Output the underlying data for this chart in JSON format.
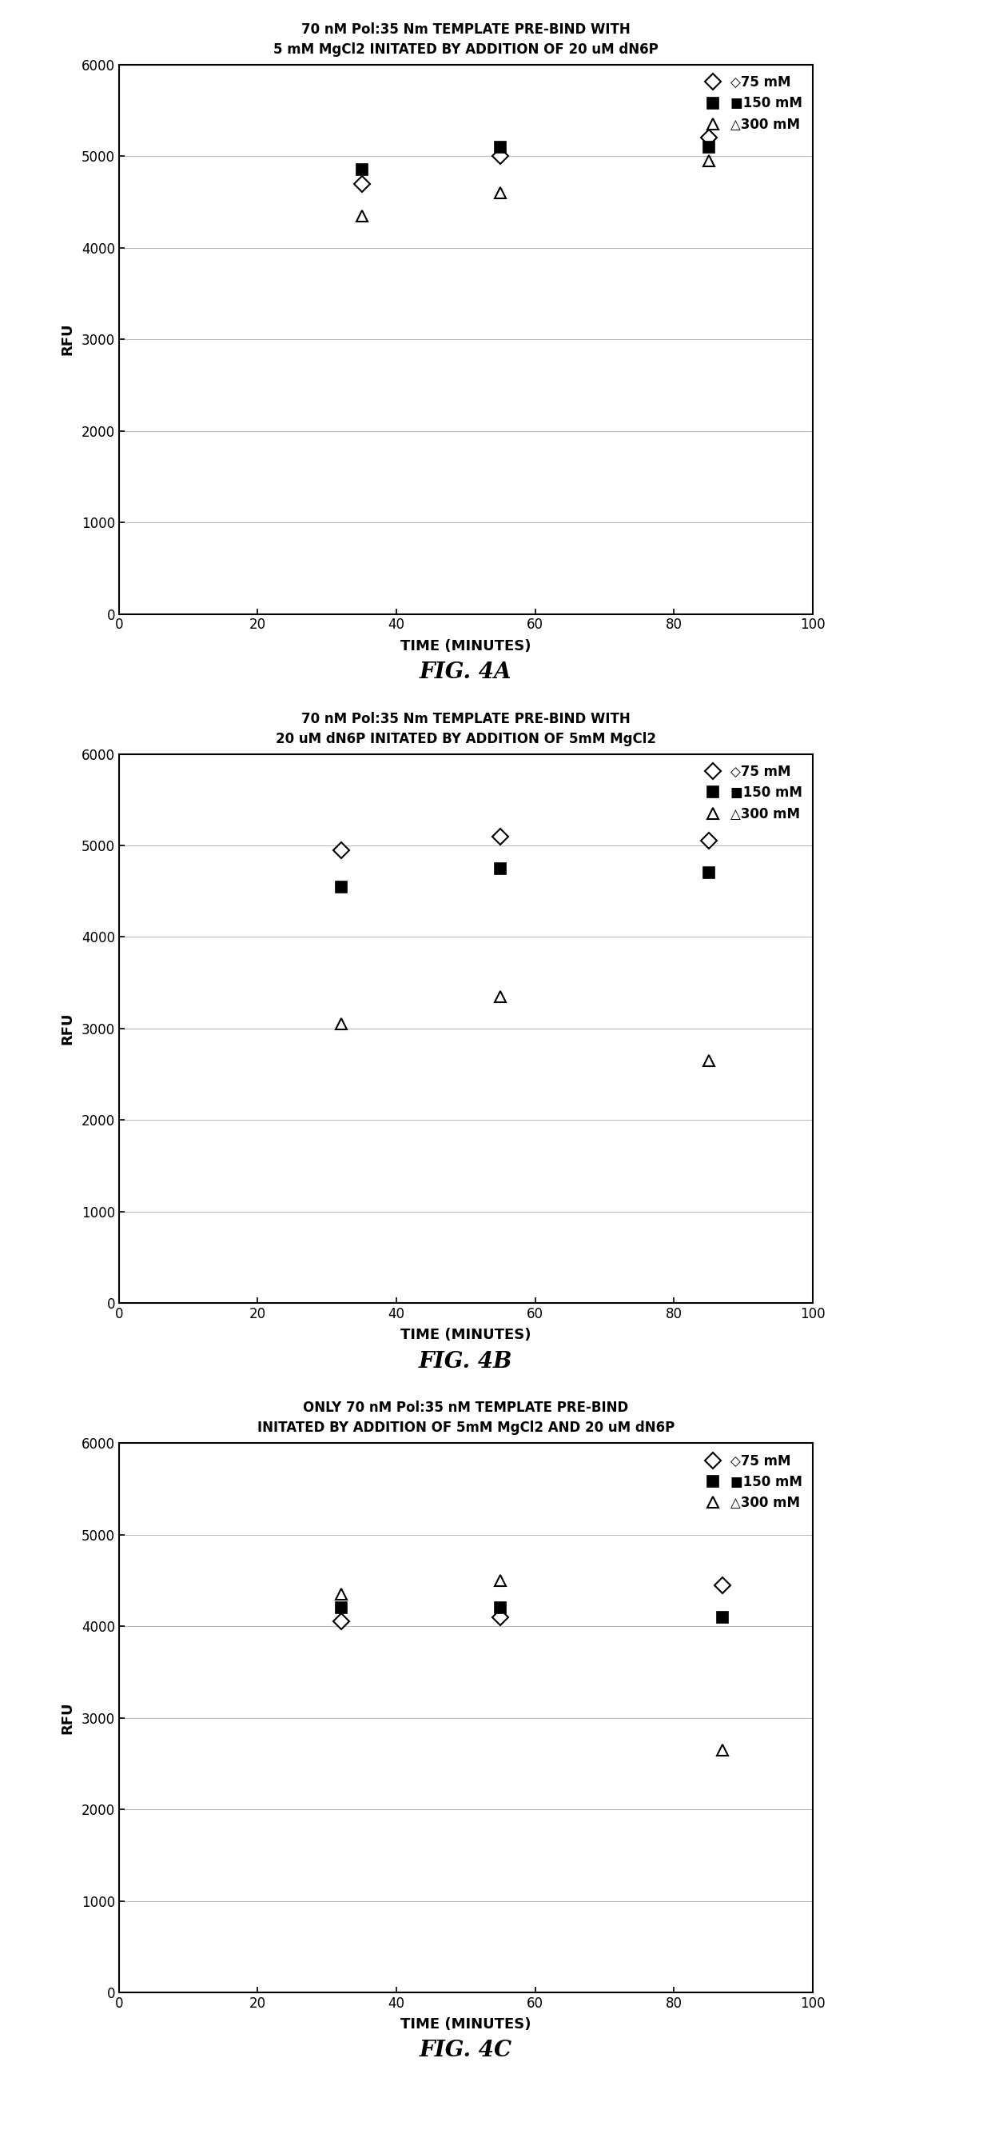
{
  "fig4a": {
    "title_line1": "70 nM Pol:35 Nm TEMPLATE PRE-BIND WITH",
    "title_line2": "5 mM MgCl2 INITATED BY ADDITION OF 20 uM dN6P",
    "fig_label": "FIG. 4A",
    "series": {
      "75mM": {
        "x": [
          35,
          55,
          85
        ],
        "y": [
          4700,
          5000,
          5200
        ]
      },
      "150mM": {
        "x": [
          35,
          55,
          85
        ],
        "y": [
          4850,
          5100,
          5100
        ]
      },
      "300mM": {
        "x": [
          35,
          55,
          85
        ],
        "y": [
          4350,
          4600,
          4950
        ]
      }
    }
  },
  "fig4b": {
    "title_line1": "70 nM Pol:35 Nm TEMPLATE PRE-BIND WITH",
    "title_line2": "20 uM dN6P INITATED BY ADDITION OF 5mM MgCl2",
    "fig_label": "FIG. 4B",
    "series": {
      "75mM": {
        "x": [
          32,
          55,
          85
        ],
        "y": [
          4950,
          5100,
          5050
        ]
      },
      "150mM": {
        "x": [
          32,
          55,
          85
        ],
        "y": [
          4550,
          4750,
          4700
        ]
      },
      "300mM": {
        "x": [
          32,
          55,
          85
        ],
        "y": [
          3050,
          3350,
          2650
        ]
      }
    }
  },
  "fig4c": {
    "title_line1": "ONLY 70 nM Pol:35 nM TEMPLATE PRE-BIND",
    "title_line2": "INITATED BY ADDITION OF 5mM MgCl2 AND 20 uM dN6P",
    "fig_label": "FIG. 4C",
    "series": {
      "75mM": {
        "x": [
          32,
          55,
          87
        ],
        "y": [
          4050,
          4100,
          4450
        ]
      },
      "150mM": {
        "x": [
          32,
          55,
          87
        ],
        "y": [
          4200,
          4200,
          4100
        ]
      },
      "300mM": {
        "x": [
          32,
          55,
          87
        ],
        "y": [
          4350,
          4500,
          2650
        ]
      }
    }
  },
  "ylim": [
    0,
    6000
  ],
  "yticks": [
    0,
    1000,
    2000,
    3000,
    4000,
    5000,
    6000
  ],
  "xlim": [
    0,
    100
  ],
  "xticks": [
    0,
    20,
    40,
    60,
    80,
    100
  ],
  "ylabel": "RFU",
  "xlabel": "TIME (MINUTES)",
  "background": "#ffffff",
  "grid_color": "#bbbbbb",
  "marker_size": 10,
  "title_fontsize": 12,
  "tick_fontsize": 12,
  "axis_label_fontsize": 13,
  "legend_fontsize": 12,
  "fig_label_fontsize": 20
}
